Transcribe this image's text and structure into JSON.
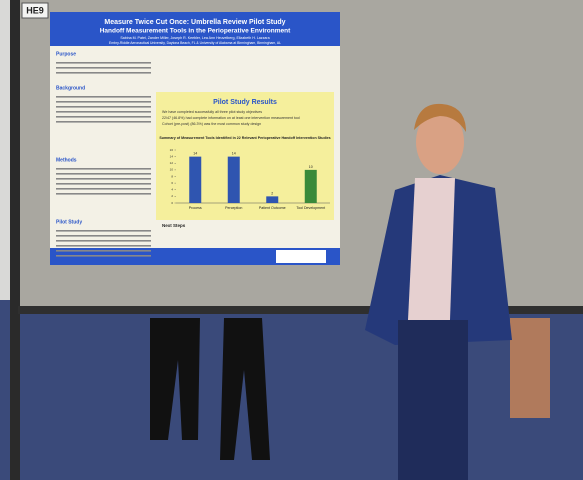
{
  "poster": {
    "board_label": "HE9",
    "title": "Measure Twice Cut Once: Umbrella Review Pilot Study",
    "subtitle": "Handoff Measurement Tools in the Perioperative Environment",
    "authors": "Sabina M. Patel, Zander Miller, Joseph R. Keebler, Lea Ann Heuvelberg, Elizabeth H. Lazzara",
    "affiliation": "Embry-Riddle Aeronautical University, Daytona Beach, FL & University of Alabama at Birmingham, Birmingham, AL",
    "sections": [
      "Purpose",
      "Background",
      "Methods",
      "Pilot Study",
      "Next Steps"
    ],
    "results_heading": "Pilot Study Results",
    "results": [
      "We have completed successfully all three pilot study objectives",
      "22/47 (46.8%) had complete information on at least one intervention measurement tool",
      "Cohort (pre-post) (86.3%) was the most common study design"
    ],
    "chart": {
      "type": "bar",
      "title": "Summary of Measurement Tools Identified in 22 Relevant Perioperative Handoff Intervention Studies",
      "categories": [
        "Process",
        "Perception",
        "Patient Outcome",
        "Tool Development"
      ],
      "values": [
        14,
        14,
        2,
        10
      ],
      "colors": [
        "#2f55b0",
        "#2f55b0",
        "#2f55b0",
        "#3a8a3a"
      ],
      "ylim": [
        0,
        16
      ],
      "yticks": [
        0,
        2,
        4,
        6,
        8,
        10,
        12,
        14,
        16
      ]
    }
  }
}
